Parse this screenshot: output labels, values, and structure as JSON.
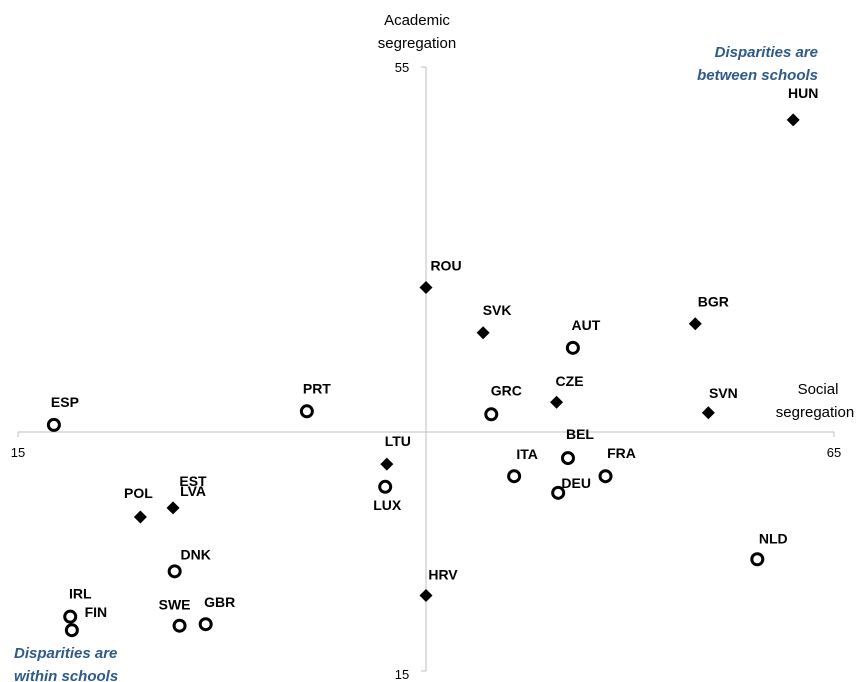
{
  "chart_data": {
    "type": "scatter",
    "xlabel": [
      "Social",
      "segregation"
    ],
    "ylabel": [
      "Academic",
      "segregation"
    ],
    "xlim": [
      15,
      65
    ],
    "ylim": [
      15,
      55
    ],
    "x_ticks": [
      "15",
      "65"
    ],
    "y_ticks": [
      "55",
      "15"
    ],
    "annotations": {
      "top_right": [
        "Disparities are",
        "between schools"
      ],
      "bottom_left": [
        "Disparities are",
        "within schools"
      ]
    },
    "points": [
      {
        "label": "HUN",
        "x": 62.5,
        "y": 51.5,
        "marker": "diamond"
      },
      {
        "label": "ROU",
        "x": 40.0,
        "y": 40.4,
        "marker": "diamond"
      },
      {
        "label": "SVK",
        "x": 43.5,
        "y": 37.4,
        "marker": "diamond"
      },
      {
        "label": "BGR",
        "x": 56.5,
        "y": 38.0,
        "marker": "diamond"
      },
      {
        "label": "AUT",
        "x": 49.0,
        "y": 36.4,
        "marker": "circle"
      },
      {
        "label": "CZE",
        "x": 48.0,
        "y": 32.8,
        "marker": "diamond"
      },
      {
        "label": "SVN",
        "x": 57.3,
        "y": 32.1,
        "marker": "diamond"
      },
      {
        "label": "GRC",
        "x": 44.0,
        "y": 32.0,
        "marker": "circle"
      },
      {
        "label": "BEL",
        "x": 48.7,
        "y": 29.1,
        "marker": "circle"
      },
      {
        "label": "ESP",
        "x": 17.2,
        "y": 31.3,
        "marker": "circle"
      },
      {
        "label": "PRT",
        "x": 32.7,
        "y": 32.2,
        "marker": "circle"
      },
      {
        "label": "LTU",
        "x": 37.6,
        "y": 28.7,
        "marker": "diamond"
      },
      {
        "label": "ITA",
        "x": 45.4,
        "y": 27.9,
        "marker": "circle"
      },
      {
        "label": "FRA",
        "x": 51.0,
        "y": 27.9,
        "marker": "circle"
      },
      {
        "label": "DEU",
        "x": 48.1,
        "y": 26.8,
        "marker": "circle"
      },
      {
        "label": "LUX",
        "x": 37.5,
        "y": 27.2,
        "marker": "circle"
      },
      {
        "label": "LVA",
        "x": 24.5,
        "y": 25.8,
        "marker": "diamond"
      },
      {
        "label": "POL",
        "x": 22.5,
        "y": 25.2,
        "marker": "diamond"
      },
      {
        "label": "NLD",
        "x": 60.3,
        "y": 22.4,
        "marker": "circle"
      },
      {
        "label": "DNK",
        "x": 24.6,
        "y": 21.6,
        "marker": "circle"
      },
      {
        "label": "HRV",
        "x": 40.0,
        "y": 20.0,
        "marker": "diamond"
      },
      {
        "label": "IRL",
        "x": 18.2,
        "y": 18.6,
        "marker": "circle"
      },
      {
        "label": "SWE",
        "x": 24.9,
        "y": 18.0,
        "marker": "circle"
      },
      {
        "label": "GBR",
        "x": 26.5,
        "y": 18.1,
        "marker": "circle"
      },
      {
        "label": "FIN",
        "x": 18.3,
        "y": 17.7,
        "marker": "circle"
      },
      {
        "label": "EST",
        "x": null,
        "y": null,
        "marker": "label-only"
      }
    ]
  }
}
